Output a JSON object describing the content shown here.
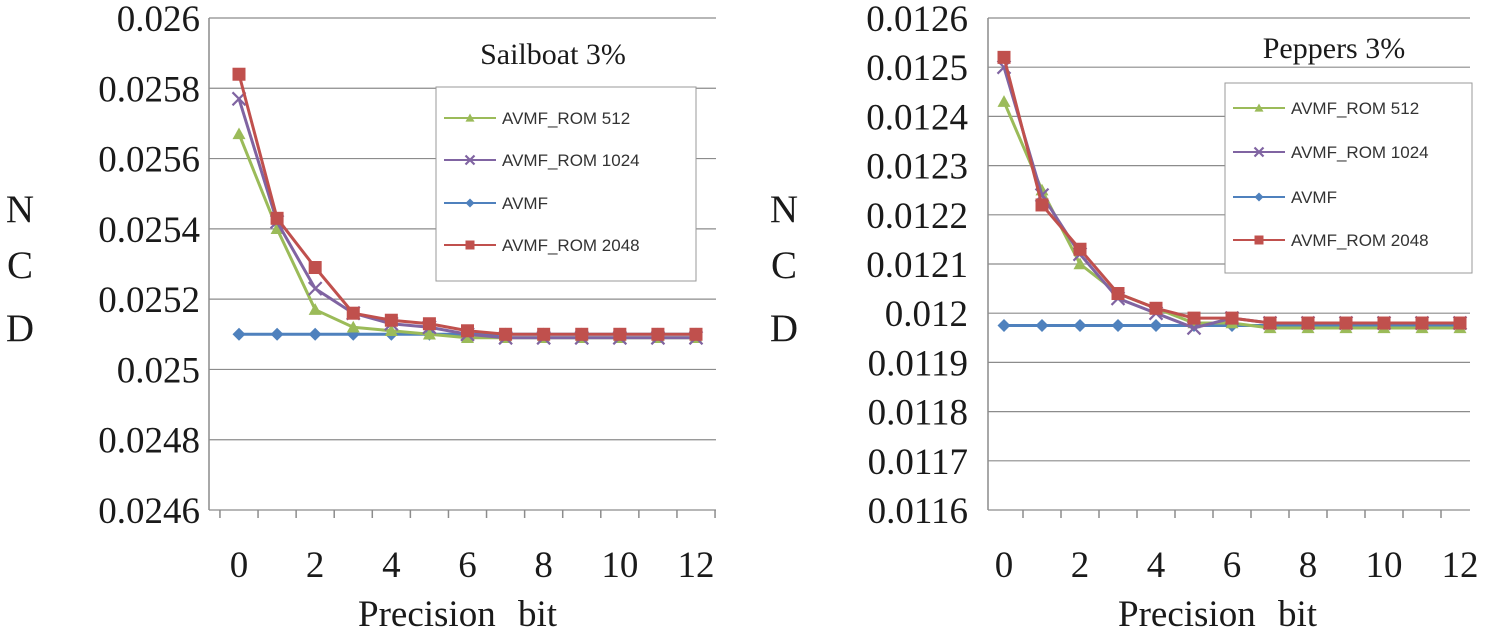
{
  "figure": {
    "xlabel_words": [
      "Precision",
      "bit"
    ],
    "ylabel_letters": [
      "N",
      "C",
      "D"
    ]
  },
  "colors": {
    "AVMF_ROM 512": "#9bbb59",
    "AVMF_ROM 1024": "#8064a2",
    "AVMF": "#4f81bd",
    "AVMF_ROM 2048": "#c0504d"
  },
  "markers": {
    "AVMF_ROM 512": "triangle",
    "AVMF_ROM 1024": "x",
    "AVMF": "diamond",
    "AVMF_ROM 2048": "square"
  },
  "chart_data": [
    {
      "type": "line",
      "title": "Sailboat  3%",
      "xlabel": "Precision  bit",
      "ylabel": "NCD",
      "x": [
        0,
        1,
        2,
        3,
        4,
        5,
        6,
        7,
        8,
        9,
        10,
        11,
        12
      ],
      "xticks": [
        0,
        2,
        4,
        6,
        8,
        10,
        12
      ],
      "ylim": [
        0.0246,
        0.026
      ],
      "yticks": [
        0.0246,
        0.0248,
        0.025,
        0.0252,
        0.0254,
        0.0256,
        0.0258,
        0.026
      ],
      "ytick_labels": [
        "0.0246",
        "0.0248",
        "0.025",
        "0.0252",
        "0.0254",
        "0.0256",
        "0.0258",
        "0.026"
      ],
      "legend_order": [
        "AVMF_ROM 512",
        "AVMF_ROM 1024",
        "AVMF",
        "AVMF_ROM 2048"
      ],
      "series": [
        {
          "name": "AVMF",
          "values": [
            0.0251,
            0.0251,
            0.0251,
            0.0251,
            0.0251,
            0.0251,
            0.0251,
            0.0251,
            0.0251,
            0.0251,
            0.0251,
            0.0251,
            0.0251
          ]
        },
        {
          "name": "AVMF_ROM 512",
          "values": [
            0.02567,
            0.0254,
            0.02517,
            0.02512,
            0.02511,
            0.0251,
            0.02509,
            0.02509,
            0.02509,
            0.02509,
            0.02509,
            0.02509,
            0.02509
          ]
        },
        {
          "name": "AVMF_ROM 1024",
          "values": [
            0.02577,
            0.02542,
            0.02523,
            0.02516,
            0.02513,
            0.02512,
            0.0251,
            0.02509,
            0.02509,
            0.02509,
            0.02509,
            0.02509,
            0.02509
          ]
        },
        {
          "name": "AVMF_ROM 2048",
          "values": [
            0.02584,
            0.02543,
            0.02529,
            0.02516,
            0.02514,
            0.02513,
            0.02511,
            0.0251,
            0.0251,
            0.0251,
            0.0251,
            0.0251,
            0.0251
          ]
        }
      ]
    },
    {
      "type": "line",
      "title": "Peppers  3%",
      "xlabel": "Precision  bit",
      "ylabel": "NCD",
      "x": [
        0,
        1,
        2,
        3,
        4,
        5,
        6,
        7,
        8,
        9,
        10,
        11,
        12
      ],
      "xticks": [
        0,
        2,
        4,
        6,
        8,
        10,
        12
      ],
      "ylim": [
        0.0116,
        0.0126
      ],
      "yticks": [
        0.0116,
        0.0117,
        0.0118,
        0.0119,
        0.012,
        0.0121,
        0.0122,
        0.0123,
        0.0124,
        0.0125,
        0.0126
      ],
      "ytick_labels": [
        "0.0116",
        "0.0117",
        "0.0118",
        "0.0119",
        "0.012",
        "0.0121",
        "0.0122",
        "0.0123",
        "0.0124",
        "0.0125",
        "0.0126"
      ],
      "legend_order": [
        "AVMF_ROM 512",
        "AVMF_ROM 1024",
        "AVMF",
        "AVMF_ROM 2048"
      ],
      "series": [
        {
          "name": "AVMF",
          "values": [
            0.011975,
            0.011975,
            0.011975,
            0.011975,
            0.011975,
            0.011975,
            0.011975,
            0.011975,
            0.011975,
            0.011975,
            0.011975,
            0.011975,
            0.011975
          ]
        },
        {
          "name": "AVMF_ROM 512",
          "values": [
            0.01243,
            0.01225,
            0.0121,
            0.01204,
            0.01201,
            0.01198,
            0.01198,
            0.01197,
            0.01197,
            0.01197,
            0.01197,
            0.01197,
            0.01197
          ]
        },
        {
          "name": "AVMF_ROM 1024",
          "values": [
            0.0125,
            0.01224,
            0.01212,
            0.01203,
            0.012,
            0.01197,
            0.01199,
            0.01198,
            0.01198,
            0.01198,
            0.01198,
            0.01198,
            0.01198
          ]
        },
        {
          "name": "AVMF_ROM 2048",
          "values": [
            0.01252,
            0.01222,
            0.01213,
            0.01204,
            0.01201,
            0.01199,
            0.01199,
            0.01198,
            0.01198,
            0.01198,
            0.01198,
            0.01198,
            0.01198
          ]
        }
      ]
    }
  ]
}
